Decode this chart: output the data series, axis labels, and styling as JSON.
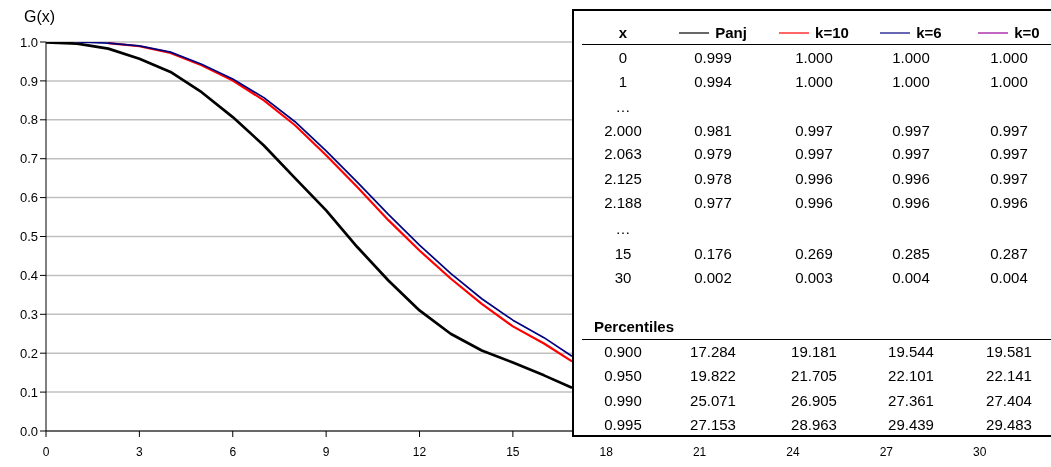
{
  "chart_data": {
    "type": "line",
    "ylabel": "G(x)",
    "x": [
      0,
      1,
      2,
      3,
      4,
      5,
      6,
      7,
      8,
      9,
      10,
      11,
      12,
      13,
      14,
      15,
      16,
      16.9
    ],
    "series": [
      {
        "name": "Panj",
        "color": "#000000",
        "values": [
          0.999,
          0.996,
          0.983,
          0.957,
          0.923,
          0.871,
          0.807,
          0.734,
          0.65,
          0.567,
          0.473,
          0.387,
          0.31,
          0.25,
          0.207,
          0.176,
          0.143,
          0.111
        ]
      },
      {
        "name": "k=10",
        "color": "#ff0000",
        "values": [
          null,
          null,
          0.997,
          0.989,
          0.972,
          0.94,
          0.901,
          0.85,
          0.786,
          0.709,
          0.627,
          0.542,
          0.464,
          0.392,
          0.327,
          0.269,
          0.225,
          0.179
        ]
      },
      {
        "name": "k=6",
        "color": "#000080",
        "values": [
          null,
          1.0,
          0.997,
          0.99,
          0.974,
          0.943,
          0.905,
          0.857,
          0.795,
          0.72,
          0.64,
          0.557,
          0.478,
          0.405,
          0.34,
          0.285,
          0.24,
          0.192
        ]
      },
      {
        "name": "k=0",
        "color": "#990099",
        "values": [
          null,
          null,
          null,
          null,
          null,
          null,
          null,
          null,
          null,
          null,
          null,
          null,
          null,
          null,
          null,
          null,
          null,
          null
        ]
      }
    ],
    "xlim": [
      0,
      32
    ],
    "xticks": [
      0,
      3,
      6,
      9,
      12,
      15,
      18,
      21,
      24,
      27,
      30
    ],
    "ylim": [
      0,
      1
    ],
    "yticks": [
      {
        "value": 0,
        "label": "0.0"
      },
      {
        "value": 0.1,
        "label": "0.1"
      },
      {
        "value": 0.2,
        "label": "0.2"
      },
      {
        "value": 0.3,
        "label": "0.3"
      },
      {
        "value": 0.4,
        "label": "0.4"
      },
      {
        "value": 0.5,
        "label": "0.5"
      },
      {
        "value": 0.6,
        "label": "0.6"
      },
      {
        "value": 0.7,
        "label": "0.7"
      },
      {
        "value": 0.8,
        "label": "0.8"
      },
      {
        "value": 0.9,
        "label": "0.9"
      },
      {
        "value": 1,
        "label": "1.0"
      }
    ],
    "grid": "y",
    "legend": "top right",
    "marker": "none",
    "line_style": "solid",
    "annotations": [
      "x",
      "0",
      "0.999",
      "1.000",
      "1.000",
      "1.000",
      "1",
      "0.994",
      "1.000",
      "1.000",
      "1.000",
      "…",
      "2.000",
      "0.981",
      "0.997",
      "0.997",
      "0.997",
      "2.063",
      "0.979",
      "0.997",
      "0.997",
      "0.997",
      "2.125",
      "0.978",
      "0.996",
      "0.996",
      "0.997",
      "2.188",
      "0.977",
      "0.996",
      "0.996",
      "0.996",
      "…",
      "15",
      "0.176",
      "0.269",
      "0.285",
      "0.287",
      "30",
      "0.002",
      "0.003",
      "0.004",
      "0.004",
      "Percentiles",
      "0.900",
      "17.284",
      "19.181",
      "19.544",
      "19.581",
      "0.950",
      "19.822",
      "21.705",
      "22.101",
      "22.141",
      "0.990",
      "25.071",
      "26.905",
      "27.361",
      "27.404",
      "0.995",
      "27.153",
      "28.963",
      "29.439",
      "29.483"
    ]
  }
}
